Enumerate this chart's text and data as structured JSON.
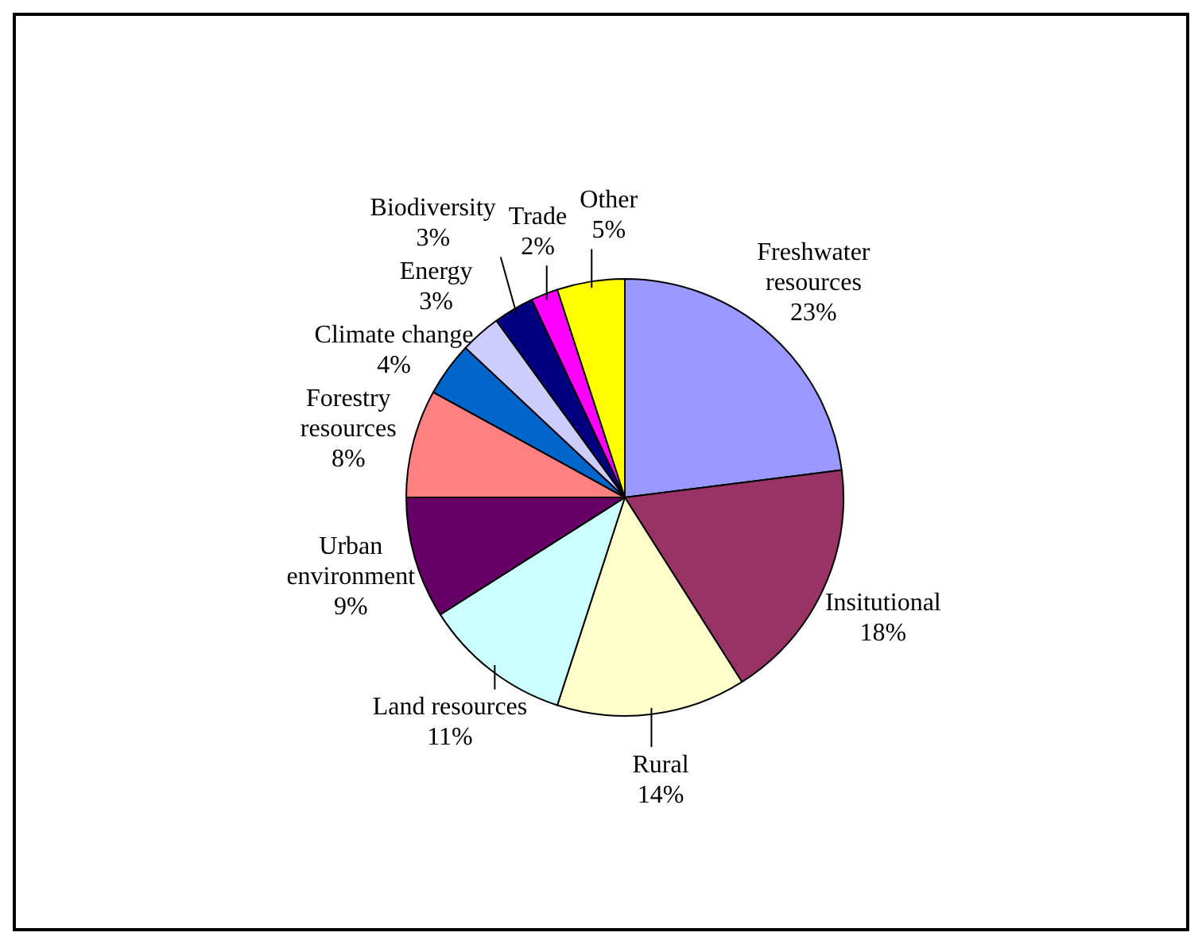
{
  "chart_data": {
    "type": "pie",
    "categories": [
      "Freshwater resources",
      "Insitutional",
      "Rural",
      "Land resources",
      "Urban environment",
      "Forestry resources",
      "Climate change",
      "Energy",
      "Biodiversity",
      "Trade",
      "Other"
    ],
    "values": [
      23,
      18,
      14,
      11,
      9,
      8,
      4,
      3,
      3,
      2,
      5
    ],
    "value_labels": [
      "23%",
      "18%",
      "14%",
      "11%",
      "9%",
      "8%",
      "4%",
      "3%",
      "3%",
      "2%",
      "5%"
    ],
    "colors": [
      "#9999ff",
      "#993366",
      "#ffffcc",
      "#ccffff",
      "#660066",
      "#ff8080",
      "#0066cc",
      "#ccccff",
      "#000080",
      "#ff00ff",
      "#ffff00"
    ],
    "legend": false
  }
}
